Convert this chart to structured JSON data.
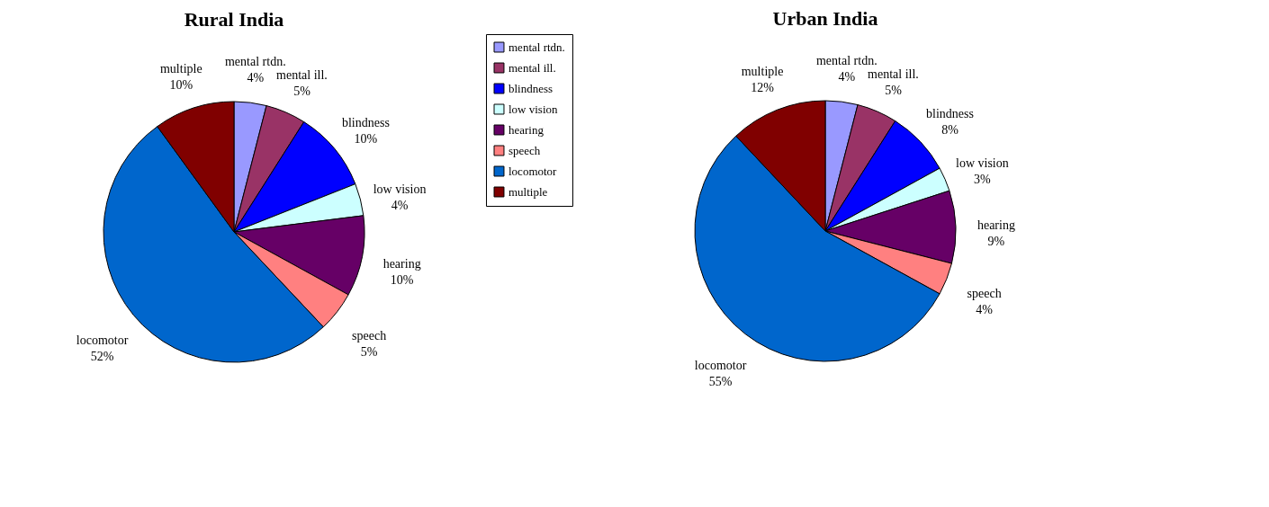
{
  "chart_data": [
    {
      "type": "pie",
      "title": "Rural India",
      "categories": [
        "mental rtdn.",
        "mental ill.",
        "blindness",
        "low vision",
        "hearing",
        "speech",
        "locomotor",
        "multiple"
      ],
      "values": [
        4,
        5,
        10,
        4,
        10,
        5,
        52,
        10
      ],
      "value_labels": [
        "4%",
        "5%",
        "10%",
        "4%",
        "10%",
        "5%",
        "52%",
        "10%"
      ],
      "colors": [
        "#9999ff",
        "#993366",
        "#0000ff",
        "#ccffff",
        "#660066",
        "#ff8080",
        "#0066cc",
        "#800000"
      ],
      "legend": "right"
    },
    {
      "type": "pie",
      "title": "Urban India",
      "categories": [
        "mental rtdn.",
        "mental ill.",
        "blindness",
        "low vision",
        "hearing",
        "speech",
        "locomotor",
        "multiple"
      ],
      "values": [
        4,
        5,
        8,
        3,
        9,
        4,
        55,
        12
      ],
      "value_labels": [
        "4%",
        "5%",
        "8%",
        "3%",
        "9%",
        "4%",
        "55%",
        "12%"
      ],
      "colors": [
        "#9999ff",
        "#993366",
        "#0000ff",
        "#ccffff",
        "#660066",
        "#ff8080",
        "#0066cc",
        "#800000"
      ]
    }
  ]
}
